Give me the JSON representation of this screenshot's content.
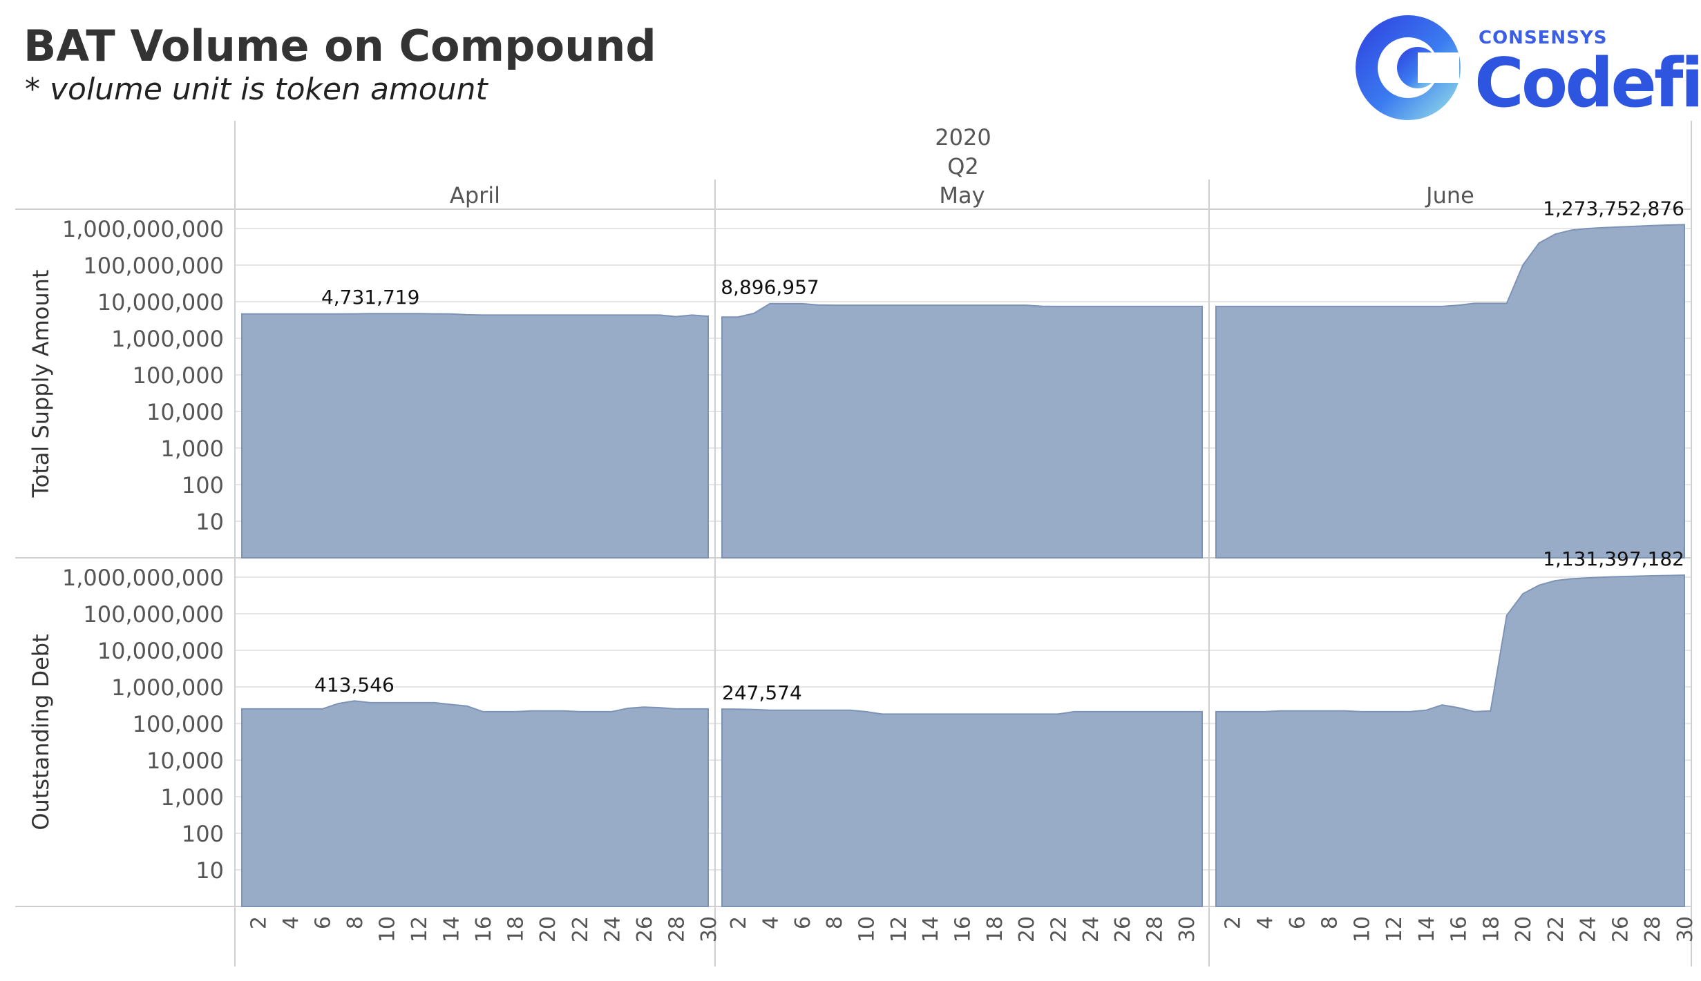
{
  "header": {
    "title": "BAT Volume on Compound",
    "subtitle": "* volume unit is token amount"
  },
  "logo": {
    "brand_small": "CONSENSYS",
    "brand_large": "Codefi",
    "icon": "codefi-logo-icon"
  },
  "colors": {
    "area_fill": "#98acc8",
    "area_stroke": "#7d93b5",
    "grid": "#e6e6e6",
    "axis_text": "#555555",
    "label_text": "#111111",
    "divider": "#cfcfcf"
  },
  "chart_data": {
    "type": "area",
    "column_headers": {
      "year": "2020",
      "quarter": "Q2",
      "months": [
        "April",
        "May",
        "June"
      ]
    },
    "y_scale": "log",
    "ylim": [
      1,
      2000000000
    ],
    "y_ticks": [
      10,
      100,
      1000,
      10000,
      100000,
      1000000,
      10000000,
      100000000,
      1000000000
    ],
    "y_tick_labels": [
      "10",
      "100",
      "1,000",
      "10,000",
      "100,000",
      "1,000,000",
      "10,000,000",
      "100,000,000",
      "1,000,000,000"
    ],
    "x_tick_labels": {
      "April": [
        "2",
        "4",
        "6",
        "8",
        "10",
        "12",
        "14",
        "16",
        "18",
        "20",
        "22",
        "24",
        "26",
        "28",
        "30"
      ],
      "May": [
        "2",
        "4",
        "6",
        "8",
        "10",
        "12",
        "14",
        "16",
        "18",
        "20",
        "22",
        "24",
        "26",
        "28",
        "30"
      ],
      "June": [
        "2",
        "4",
        "6",
        "8",
        "10",
        "12",
        "14",
        "16",
        "18",
        "20",
        "22",
        "24",
        "26",
        "28",
        "30"
      ]
    },
    "rows": [
      {
        "name": "Total Supply Amount",
        "months": [
          {
            "month": "April",
            "x": [
              1,
              2,
              3,
              4,
              5,
              6,
              7,
              8,
              9,
              10,
              11,
              12,
              13,
              14,
              15,
              16,
              17,
              18,
              19,
              20,
              21,
              22,
              23,
              24,
              25,
              26,
              27,
              28,
              29,
              30
            ],
            "values": [
              4600000,
              4600000,
              4600000,
              4600000,
              4600000,
              4600000,
              4600000,
              4650000,
              4731719,
              4700000,
              4700000,
              4700000,
              4650000,
              4600000,
              4400000,
              4300000,
              4300000,
              4300000,
              4300000,
              4300000,
              4300000,
              4300000,
              4300000,
              4300000,
              4300000,
              4300000,
              4300000,
              3900000,
              4300000,
              4000000
            ],
            "max_label": "4,731,719",
            "max_day": 9
          },
          {
            "month": "May",
            "x": [
              1,
              2,
              3,
              4,
              5,
              6,
              7,
              8,
              9,
              10,
              11,
              12,
              13,
              14,
              15,
              16,
              17,
              18,
              19,
              20,
              21,
              22,
              23,
              24,
              25,
              26,
              27,
              28,
              29,
              30,
              31
            ],
            "values": [
              3800000,
              3800000,
              4800000,
              8896957,
              8800000,
              8800000,
              8100000,
              8000000,
              8000000,
              8000000,
              8000000,
              8000000,
              8000000,
              8000000,
              8000000,
              8000000,
              8000000,
              8000000,
              8000000,
              8000000,
              7500000,
              7400000,
              7400000,
              7400000,
              7400000,
              7400000,
              7400000,
              7400000,
              7400000,
              7400000,
              7400000
            ],
            "max_label": "8,896,957",
            "max_day": 4
          },
          {
            "month": "June",
            "x": [
              1,
              2,
              3,
              4,
              5,
              6,
              7,
              8,
              9,
              10,
              11,
              12,
              13,
              14,
              15,
              16,
              17,
              18,
              19,
              20,
              21,
              22,
              23,
              24,
              25,
              26,
              27,
              28,
              29,
              30
            ],
            "values": [
              7400000,
              7400000,
              7400000,
              7400000,
              7400000,
              7400000,
              7400000,
              7400000,
              7400000,
              7400000,
              7400000,
              7400000,
              7400000,
              7400000,
              7400000,
              8000000,
              9000000,
              9000000,
              9000000,
              100000000,
              400000000,
              700000000,
              900000000,
              1000000000,
              1050000000,
              1100000000,
              1150000000,
              1200000000,
              1240000000,
              1273752876
            ],
            "max_label": "1,273,752,876",
            "max_day": 30
          }
        ]
      },
      {
        "name": "Outstanding Debt",
        "months": [
          {
            "month": "April",
            "x": [
              1,
              2,
              3,
              4,
              5,
              6,
              7,
              8,
              9,
              10,
              11,
              12,
              13,
              14,
              15,
              16,
              17,
              18,
              19,
              20,
              21,
              22,
              23,
              24,
              25,
              26,
              27,
              28,
              29,
              30
            ],
            "values": [
              250000,
              250000,
              250000,
              250000,
              250000,
              250000,
              350000,
              413546,
              370000,
              370000,
              370000,
              370000,
              370000,
              330000,
              300000,
              210000,
              210000,
              210000,
              220000,
              220000,
              220000,
              210000,
              210000,
              210000,
              260000,
              280000,
              270000,
              250000,
              250000,
              250000
            ],
            "max_label": "413,546",
            "max_day": 8
          },
          {
            "month": "May",
            "x": [
              1,
              2,
              3,
              4,
              5,
              6,
              7,
              8,
              9,
              10,
              11,
              12,
              13,
              14,
              15,
              16,
              17,
              18,
              19,
              20,
              21,
              22,
              23,
              24,
              25,
              26,
              27,
              28,
              29,
              30,
              31
            ],
            "values": [
              247574,
              247000,
              240000,
              230000,
              230000,
              230000,
              230000,
              230000,
              230000,
              210000,
              180000,
              180000,
              180000,
              180000,
              180000,
              180000,
              180000,
              180000,
              180000,
              180000,
              180000,
              180000,
              210000,
              210000,
              210000,
              210000,
              210000,
              210000,
              210000,
              210000,
              210000
            ],
            "max_label": "247,574",
            "max_day": 1
          },
          {
            "month": "June",
            "x": [
              1,
              2,
              3,
              4,
              5,
              6,
              7,
              8,
              9,
              10,
              11,
              12,
              13,
              14,
              15,
              16,
              17,
              18,
              19,
              20,
              21,
              22,
              23,
              24,
              25,
              26,
              27,
              28,
              29,
              30
            ],
            "values": [
              210000,
              210000,
              210000,
              210000,
              220000,
              220000,
              220000,
              220000,
              220000,
              210000,
              210000,
              210000,
              210000,
              230000,
              320000,
              270000,
              210000,
              220000,
              90000000,
              350000000,
              600000000,
              800000000,
              900000000,
              950000000,
              1000000000,
              1030000000,
              1060000000,
              1090000000,
              1110000000,
              1131397182
            ],
            "max_label": "1,131,397,182",
            "max_day": 30
          }
        ]
      }
    ]
  }
}
